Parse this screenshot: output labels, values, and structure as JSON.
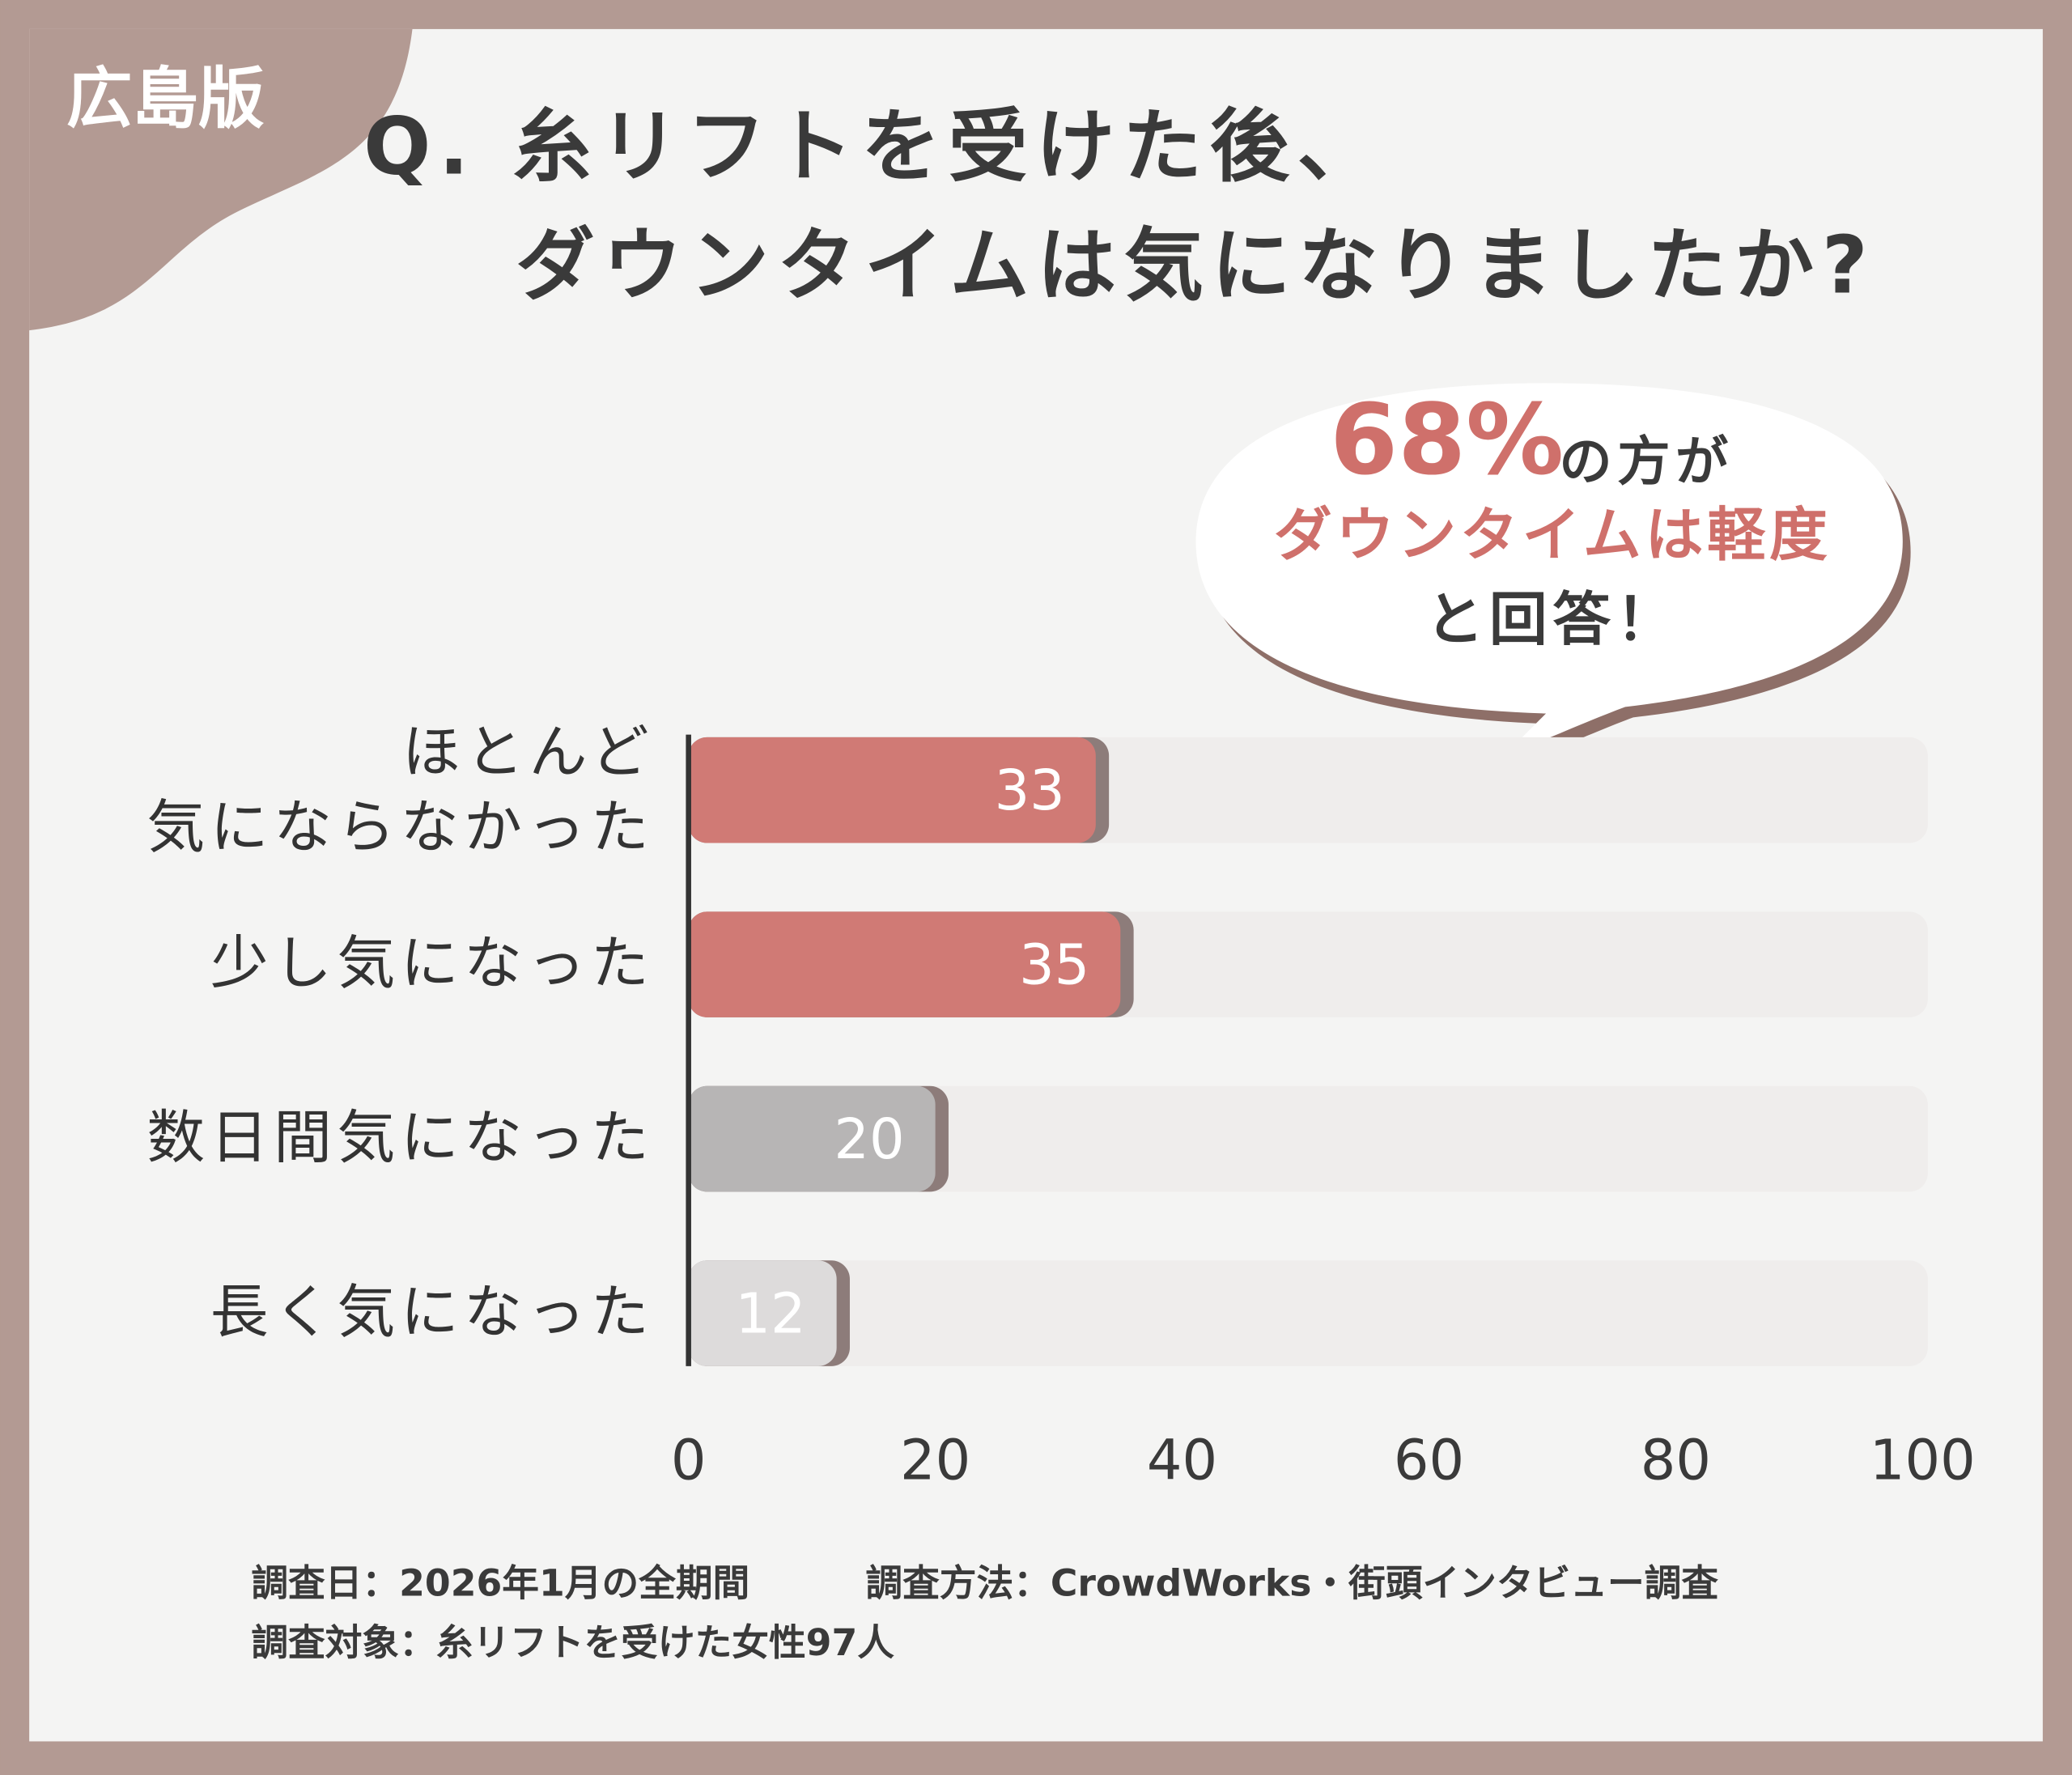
{
  "chart_data": {
    "type": "bar",
    "orientation": "horizontal",
    "badge": "広島版",
    "title": [
      "Q. 糸リフトを受けた後、",
      "ダウンタイムは気になりましたか?"
    ],
    "callout": {
      "highlight": "68%",
      "suffix": "の方が",
      "line2": "ダウンタイムは軽度",
      "line3": "と回答！"
    },
    "categories": [
      "ほとんど\n気にならなかった",
      "少し気になった",
      "数日間気になった",
      "長く気になった"
    ],
    "values": [
      33,
      35,
      20,
      12
    ],
    "colors": [
      "#d07a75",
      "#d07a75",
      "#b7b5b5",
      "#dddbdb"
    ],
    "xlim": [
      0,
      100
    ],
    "xticks": [
      0,
      20,
      40,
      60,
      80,
      100
    ],
    "grid": false,
    "notes": [
      "調査日：2026年1月の全期間",
      "調査方法：CrowdWorks・街頭インタビュー調査",
      "調査対象：糸リフトを受けた女性97人"
    ]
  }
}
